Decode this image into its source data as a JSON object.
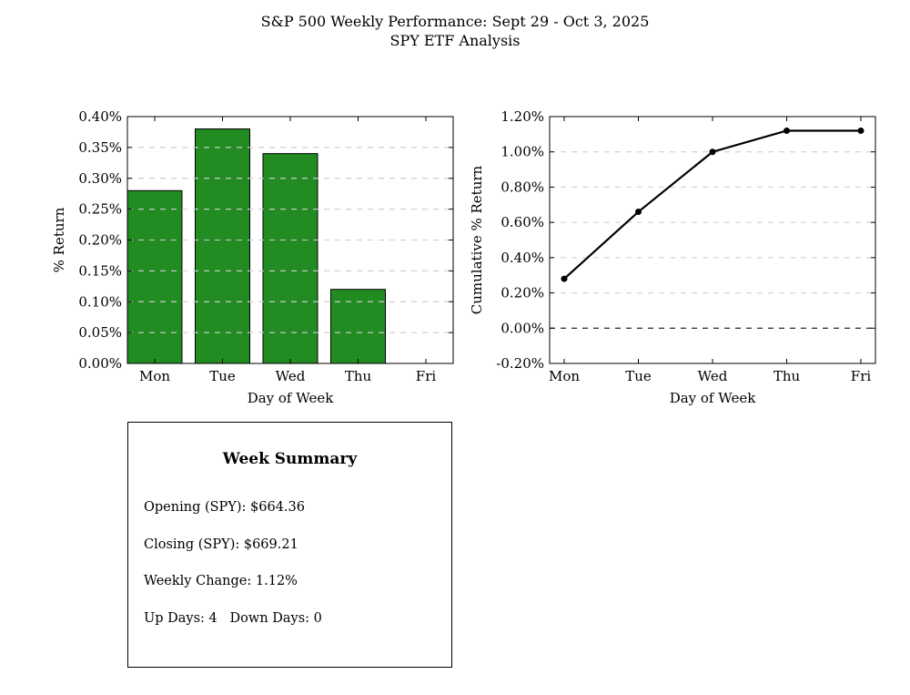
{
  "title": {
    "line1": "S&P 500 Weekly Performance: Sept 29 - Oct 3, 2025",
    "line2": "SPY ETF Analysis"
  },
  "summary": {
    "heading": "Week Summary",
    "opening": "Opening (SPY): $664.36",
    "closing": "Closing (SPY): $669.21",
    "weekly_change": "Weekly Change: 1.12%",
    "days": "Up Days: 4   Down Days: 0"
  },
  "colors": {
    "bar": "#228b22",
    "line": "#000000",
    "grid": "#cccccc"
  },
  "chart_data": [
    {
      "type": "bar",
      "title": "",
      "categories": [
        "Mon",
        "Tue",
        "Wed",
        "Thu",
        "Fri"
      ],
      "values": [
        0.28,
        0.38,
        0.34,
        0.12,
        0.0
      ],
      "xlabel": "Day of Week",
      "ylabel": "% Return",
      "ylim": [
        0,
        0.4
      ],
      "yticks": [
        "0.00%",
        "0.05%",
        "0.10%",
        "0.15%",
        "0.20%",
        "0.25%",
        "0.30%",
        "0.35%",
        "0.40%"
      ],
      "grid": true
    },
    {
      "type": "line",
      "title": "",
      "categories": [
        "Mon",
        "Tue",
        "Wed",
        "Thu",
        "Fri"
      ],
      "values": [
        0.28,
        0.66,
        1.0,
        1.12,
        1.12
      ],
      "xlabel": "Day of Week",
      "ylabel": "Cumulative % Return",
      "ylim": [
        -0.2,
        1.2
      ],
      "yticks": [
        "-0.20%",
        "0.00%",
        "0.20%",
        "0.40%",
        "0.60%",
        "0.80%",
        "1.00%",
        "1.20%"
      ],
      "grid": true,
      "reference_line": 0
    }
  ]
}
